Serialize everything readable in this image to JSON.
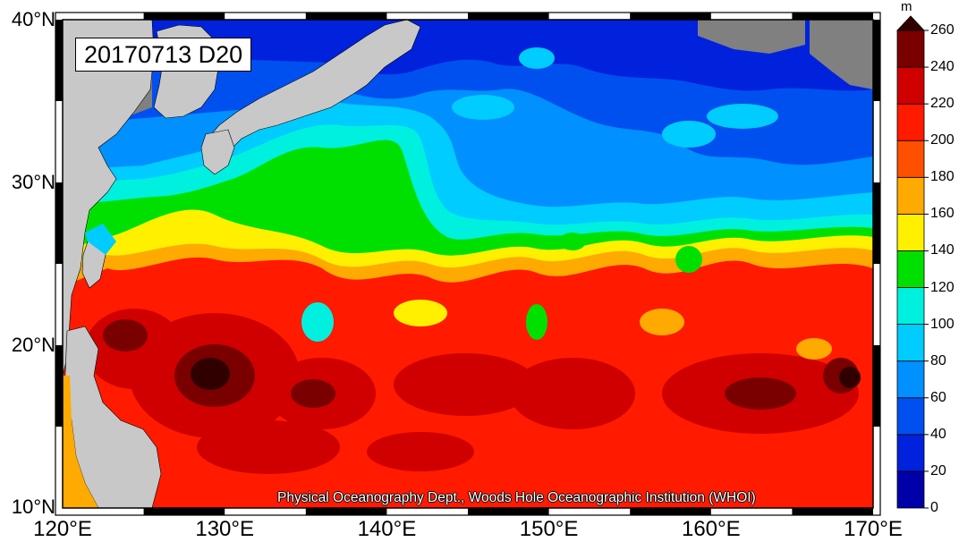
{
  "map": {
    "title": "20170713 D20",
    "credit": "Physical Oceanography Dept., Woods Hole Oceanographic Institution (WHOI)",
    "extent": {
      "lon": [
        120,
        170
      ],
      "lat": [
        10,
        40
      ]
    },
    "lat_ticks": [
      {
        "value": 40,
        "label": "40°N"
      },
      {
        "value": 30,
        "label": "30°N"
      },
      {
        "value": 20,
        "label": "20°N"
      },
      {
        "value": 10,
        "label": "10°N"
      }
    ],
    "lon_ticks": [
      {
        "value": 120,
        "label": "120°E"
      },
      {
        "value": 130,
        "label": "130°E"
      },
      {
        "value": 140,
        "label": "140°E"
      },
      {
        "value": 150,
        "label": "150°E"
      },
      {
        "value": 160,
        "label": "160°E"
      },
      {
        "value": 170,
        "label": "170°E"
      }
    ],
    "colors": {
      "land": "#c8c8c8",
      "nodata": "#808080"
    },
    "colorbar": {
      "unit": "m",
      "levels": [
        0,
        20,
        40,
        60,
        80,
        100,
        120,
        140,
        160,
        180,
        200,
        220,
        240,
        260
      ],
      "labels": [
        "0",
        "20",
        "40",
        "60",
        "80",
        "100",
        "120",
        "140",
        "160",
        "180",
        "200",
        "220",
        "240",
        "260"
      ],
      "colors": [
        "#0000aa",
        "#0022dd",
        "#0050f0",
        "#0090ff",
        "#00ccff",
        "#00f0e0",
        "#00e000",
        "#fff000",
        "#ffaa00",
        "#ff5000",
        "#ff1a00",
        "#d00000",
        "#7a0000",
        "#300000"
      ]
    }
  }
}
